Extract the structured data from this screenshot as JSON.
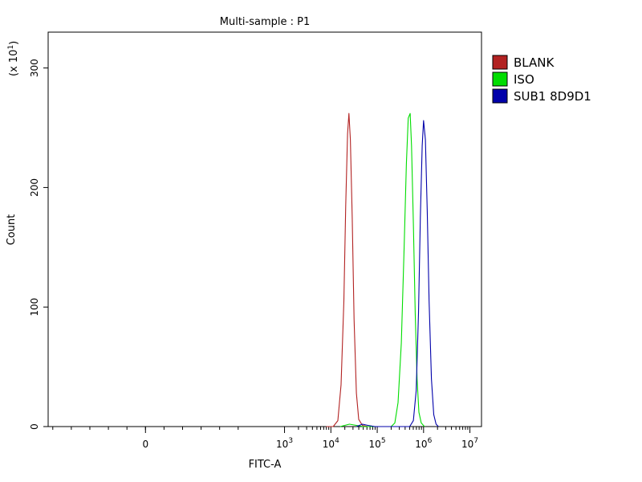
{
  "chart_data": {
    "type": "line",
    "title": "Multi-sample : P1",
    "xlabel": "FITC-A",
    "ylabel": "Count",
    "y_multiplier_label": "(x 10",
    "y_multiplier_exp": "1",
    "y_multiplier_close": ")",
    "x_scale": "logicle",
    "y_scale": "linear",
    "ylim": [
      0,
      330
    ],
    "xlim": [
      -2.1,
      7.25
    ],
    "grid": false,
    "legend_position": "right",
    "x_ticks": [
      {
        "value": 0,
        "base": "0",
        "exp": ""
      },
      {
        "value": 3,
        "base": "10",
        "exp": "3"
      },
      {
        "value": 4,
        "base": "10",
        "exp": "4"
      },
      {
        "value": 5,
        "base": "10",
        "exp": "5"
      },
      {
        "value": 6,
        "base": "10",
        "exp": "6"
      },
      {
        "value": 7,
        "base": "10",
        "exp": "7"
      }
    ],
    "y_ticks": [
      {
        "value": 0,
        "label": "0"
      },
      {
        "value": 100,
        "label": "100"
      },
      {
        "value": 200,
        "label": "200"
      },
      {
        "value": 300,
        "label": "300"
      }
    ],
    "series": [
      {
        "name": "BLANK",
        "color": "#b22222",
        "points": [
          [
            3.9,
            0
          ],
          [
            4.05,
            0
          ],
          [
            4.15,
            5
          ],
          [
            4.22,
            35
          ],
          [
            4.28,
            105
          ],
          [
            4.32,
            185
          ],
          [
            4.36,
            245
          ],
          [
            4.39,
            262
          ],
          [
            4.42,
            240
          ],
          [
            4.46,
            175
          ],
          [
            4.5,
            90
          ],
          [
            4.55,
            28
          ],
          [
            4.6,
            6
          ],
          [
            4.68,
            1
          ],
          [
            4.8,
            0
          ]
        ]
      },
      {
        "name": "ISO",
        "color": "#00dd00",
        "points": [
          [
            4.2,
            0
          ],
          [
            4.4,
            2
          ],
          [
            4.55,
            1
          ],
          [
            4.7,
            0
          ],
          [
            5.3,
            0
          ],
          [
            5.38,
            3
          ],
          [
            5.45,
            20
          ],
          [
            5.52,
            70
          ],
          [
            5.58,
            150
          ],
          [
            5.63,
            220
          ],
          [
            5.67,
            258
          ],
          [
            5.71,
            262
          ],
          [
            5.74,
            235
          ],
          [
            5.78,
            170
          ],
          [
            5.82,
            95
          ],
          [
            5.86,
            40
          ],
          [
            5.9,
            12
          ],
          [
            5.95,
            3
          ],
          [
            6.02,
            0
          ]
        ]
      },
      {
        "name": "SUB1 8D9D1",
        "color": "#0000aa",
        "points": [
          [
            4.55,
            0
          ],
          [
            4.68,
            2
          ],
          [
            4.8,
            1
          ],
          [
            4.95,
            0
          ],
          [
            5.7,
            0
          ],
          [
            5.78,
            5
          ],
          [
            5.84,
            30
          ],
          [
            5.89,
            95
          ],
          [
            5.93,
            175
          ],
          [
            5.97,
            235
          ],
          [
            6.0,
            256
          ],
          [
            6.04,
            240
          ],
          [
            6.08,
            180
          ],
          [
            6.12,
            105
          ],
          [
            6.17,
            40
          ],
          [
            6.22,
            10
          ],
          [
            6.27,
            2
          ],
          [
            6.32,
            0
          ]
        ]
      }
    ]
  }
}
